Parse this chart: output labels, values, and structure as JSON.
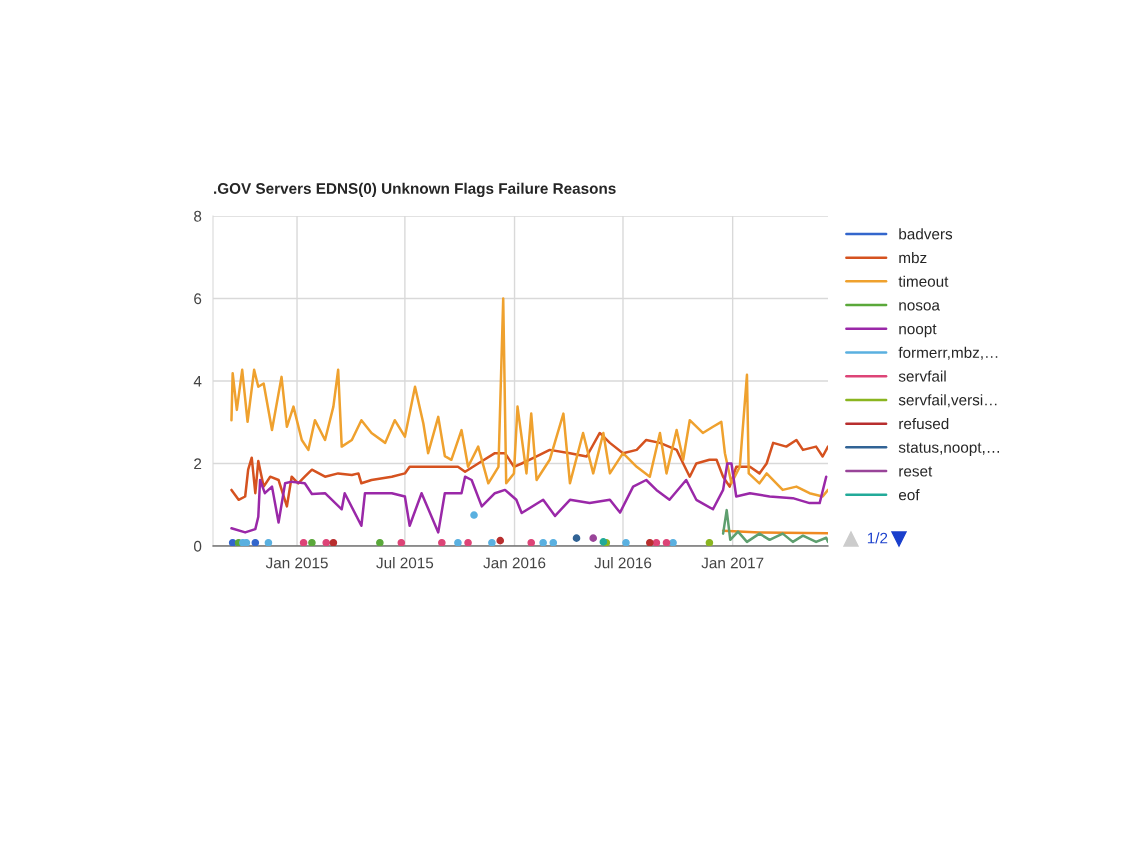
{
  "chart_data": {
    "type": "line",
    "title": ".GOV Servers EDNS(0) Unknown Flags Failure Reasons",
    "xlim": [
      "2014-08-13",
      "2017-06-10"
    ],
    "xticks": [
      {
        "value": "2015-01-01",
        "label": "Jan 2015"
      },
      {
        "value": "2015-07-01",
        "label": "Jul 2015"
      },
      {
        "value": "2016-01-01",
        "label": "Jan 2016"
      },
      {
        "value": "2016-07-01",
        "label": "Jul 2016"
      },
      {
        "value": "2017-01-01",
        "label": "Jan 2017"
      }
    ],
    "ylim": [
      0,
      8
    ],
    "yticks": [
      0,
      2,
      4,
      6,
      8
    ],
    "grid": true,
    "legend": "right",
    "annotations": [
      "1/2"
    ],
    "series": [
      {
        "name": "badvers",
        "type": "scatter",
        "color": "#3366cc",
        "x": [
          "2014-09-15",
          "2014-10-06",
          "2014-10-23"
        ],
        "values": [
          0.08,
          null,
          0.08
        ]
      },
      {
        "name": "mbz",
        "color": "#d5521f",
        "x": [
          "2014-09-13",
          "2014-09-25",
          "2014-10-06",
          "2014-10-11",
          "2014-10-17",
          "2014-10-23",
          "2014-10-28",
          "2014-11-06",
          "2014-11-17",
          "2014-12-01",
          "2014-12-15",
          "2014-12-23",
          "2015-01-03",
          "2015-01-14",
          "2015-01-26",
          "2015-02-17",
          "2015-03-11",
          "2015-04-03",
          "2015-04-14",
          "2015-04-19",
          "2015-05-06",
          "2015-06-09",
          "2015-07-01",
          "2015-07-09",
          "2015-08-26",
          "2015-09-28",
          "2015-10-10",
          "2015-11-01",
          "2015-11-29",
          "2015-12-16",
          "2015-12-31",
          "2016-01-13",
          "2016-02-07",
          "2016-02-29",
          "2016-04-03",
          "2016-05-01",
          "2016-05-23",
          "2016-06-09",
          "2016-07-01",
          "2016-07-24",
          "2016-08-09",
          "2016-09-01",
          "2016-09-29",
          "2016-10-10",
          "2016-10-21",
          "2016-11-01",
          "2016-11-23",
          "2016-12-05",
          "2016-12-16",
          "2016-12-27",
          "2017-01-07",
          "2017-01-30",
          "2017-02-15",
          "2017-02-27",
          "2017-03-10",
          "2017-04-01",
          "2017-04-18",
          "2017-04-29",
          "2017-05-21",
          "2017-06-01",
          "2017-06-10"
        ],
        "values": [
          1.36,
          1.12,
          1.2,
          1.85,
          2.14,
          1.28,
          2.06,
          1.44,
          1.68,
          1.6,
          0.96,
          1.68,
          1.52,
          1.68,
          1.85,
          1.68,
          1.76,
          1.72,
          1.76,
          1.52,
          1.6,
          1.68,
          1.76,
          1.92,
          1.92,
          1.92,
          1.8,
          2.0,
          2.25,
          2.25,
          1.92,
          2.0,
          2.17,
          2.33,
          2.25,
          2.17,
          2.74,
          2.5,
          2.25,
          2.33,
          2.57,
          2.5,
          2.33,
          2.0,
          1.68,
          2.0,
          2.09,
          2.09,
          1.68,
          1.44,
          1.92,
          1.92,
          1.76,
          2.0,
          2.5,
          2.41,
          2.57,
          2.33,
          2.41,
          2.17,
          2.41
        ]
      },
      {
        "name": "timeout",
        "color": "#efa12e",
        "x": [
          "2014-09-13",
          "2014-09-15",
          "2014-09-22",
          "2014-10-01",
          "2014-10-10",
          "2014-10-21",
          "2014-10-28",
          "2014-11-06",
          "2014-11-20",
          "2014-12-06",
          "2014-12-15",
          "2014-12-26",
          "2015-01-09",
          "2015-01-20",
          "2015-01-31",
          "2015-02-17",
          "2015-03-03",
          "2015-03-11",
          "2015-03-17",
          "2015-04-03",
          "2015-04-19",
          "2015-05-06",
          "2015-05-29",
          "2015-06-14",
          "2015-07-01",
          "2015-07-18",
          "2015-08-01",
          "2015-08-09",
          "2015-08-26",
          "2015-09-06",
          "2015-09-17",
          "2015-10-04",
          "2015-10-15",
          "2015-11-01",
          "2015-11-18",
          "2015-12-05",
          "2015-12-13",
          "2015-12-18",
          "2015-12-31",
          "2016-01-06",
          "2016-01-21",
          "2016-01-29",
          "2016-02-07",
          "2016-02-29",
          "2016-03-23",
          "2016-04-03",
          "2016-04-25",
          "2016-05-12",
          "2016-05-29",
          "2016-06-09",
          "2016-07-01",
          "2016-07-24",
          "2016-08-15",
          "2016-09-01",
          "2016-09-12",
          "2016-09-29",
          "2016-10-10",
          "2016-10-21",
          "2016-11-12",
          "2016-11-29",
          "2016-12-13",
          "2016-12-19",
          "2016-12-30",
          "2017-01-13",
          "2017-01-25",
          "2017-01-28",
          "2017-02-15",
          "2017-02-27",
          "2017-03-26",
          "2017-04-18",
          "2017-05-10",
          "2017-06-01",
          "2017-06-10"
        ],
        "values": [
          3.05,
          4.19,
          3.3,
          4.27,
          3.01,
          4.27,
          3.86,
          3.94,
          2.81,
          4.1,
          2.89,
          3.38,
          2.57,
          2.33,
          3.05,
          2.57,
          3.38,
          4.27,
          2.41,
          2.57,
          3.05,
          2.74,
          2.5,
          3.05,
          2.65,
          3.86,
          2.97,
          2.25,
          3.13,
          2.18,
          2.09,
          2.81,
          1.92,
          2.41,
          1.52,
          1.92,
          6.0,
          1.52,
          1.76,
          3.38,
          1.76,
          3.21,
          1.6,
          2.09,
          3.21,
          1.52,
          2.74,
          1.76,
          2.74,
          1.76,
          2.25,
          1.92,
          1.68,
          2.74,
          1.76,
          2.81,
          2.09,
          3.05,
          2.74,
          2.89,
          3.01,
          2.25,
          1.52,
          1.92,
          4.15,
          1.76,
          1.52,
          1.76,
          1.36,
          1.44,
          1.28,
          1.2,
          1.36
        ]
      },
      {
        "name": "nosoa",
        "type": "scatter",
        "color": "#5aa83a",
        "x": [
          "2014-09-25",
          "2015-01-26",
          "2015-05-20"
        ],
        "values": [
          0.08,
          0.08,
          0.08
        ]
      },
      {
        "name": "noopt",
        "color": "#9a28a8",
        "x": [
          "2014-09-13",
          "2014-10-06",
          "2014-10-23",
          "2014-10-28",
          "2014-10-31",
          "2014-11-08",
          "2014-11-20",
          "2014-12-01",
          "2014-12-12",
          "2014-12-23",
          "2015-01-14",
          "2015-01-26",
          "2015-02-17",
          "2015-03-17",
          "2015-03-22",
          "2015-04-19",
          "2015-04-25",
          "2015-06-09",
          "2015-07-01",
          "2015-07-09",
          "2015-07-29",
          "2015-08-26",
          "2015-09-06",
          "2015-10-04",
          "2015-10-10",
          "2015-10-21",
          "2015-11-07",
          "2015-11-29",
          "2015-12-16",
          "2016-01-04",
          "2016-01-13",
          "2016-02-18",
          "2016-03-09",
          "2016-04-03",
          "2016-05-06",
          "2016-06-09",
          "2016-06-26",
          "2016-07-18",
          "2016-08-09",
          "2016-08-26",
          "2016-09-17",
          "2016-10-15",
          "2016-11-01",
          "2016-11-29",
          "2016-12-16",
          "2016-12-23",
          "2016-12-30",
          "2017-01-07",
          "2017-01-30",
          "2017-03-04",
          "2017-04-12",
          "2017-05-10",
          "2017-05-27",
          "2017-06-07"
        ],
        "values": [
          0.43,
          0.33,
          0.41,
          0.71,
          1.6,
          1.28,
          1.44,
          0.57,
          1.52,
          1.56,
          1.52,
          1.26,
          1.28,
          0.89,
          1.28,
          0.49,
          1.28,
          1.28,
          1.2,
          0.49,
          1.28,
          0.33,
          1.28,
          1.28,
          1.68,
          1.6,
          0.96,
          1.28,
          1.36,
          1.12,
          0.8,
          1.12,
          0.73,
          1.12,
          1.04,
          1.12,
          0.81,
          1.44,
          1.6,
          1.36,
          1.12,
          1.6,
          1.12,
          0.89,
          1.36,
          2.0,
          2.0,
          1.2,
          1.28,
          1.2,
          1.16,
          1.04,
          1.04,
          1.68
        ]
      },
      {
        "name": "formerr,mbz,…",
        "type": "scatter",
        "color": "#5ab0e0",
        "x": [
          "2014-10-02",
          "2014-10-08",
          "2014-11-14",
          "2015-09-28",
          "2015-10-25",
          "2015-11-24",
          "2016-02-18",
          "2016-03-06",
          "2016-07-06",
          "2016-09-23"
        ],
        "values": [
          0.08,
          0.08,
          0.08,
          0.08,
          0.75,
          0.08,
          0.08,
          0.08,
          0.08,
          0.08
        ]
      },
      {
        "name": "servfail",
        "type": "scatter",
        "color": "#dd4477",
        "x": [
          "2015-01-12",
          "2015-02-19",
          "2015-06-25",
          "2015-09-01",
          "2015-10-15",
          "2016-01-29",
          "2016-08-26",
          "2016-09-12"
        ],
        "values": [
          0.08,
          0.08,
          0.08,
          0.08,
          0.08,
          0.08,
          0.08,
          0.08
        ]
      },
      {
        "name": "servfail,versi…",
        "type": "scatter",
        "color": "#8ab520",
        "x": [
          "2016-06-03",
          "2016-11-23"
        ],
        "values": [
          0.08,
          0.08
        ]
      },
      {
        "name": "refused",
        "type": "scatter",
        "color": "#b82e2e",
        "x": [
          "2015-03-03",
          "2015-12-08",
          "2016-08-15"
        ],
        "values": [
          0.08,
          0.13,
          0.08
        ]
      },
      {
        "name": "status,noopt,…",
        "type": "scatter",
        "color": "#316395",
        "x": [
          "2016-04-14"
        ],
        "values": [
          0.19
        ]
      },
      {
        "name": "reset",
        "type": "scatter",
        "color": "#994499",
        "x": [
          "2016-05-12"
        ],
        "values": [
          0.19
        ]
      },
      {
        "name": "eof",
        "type": "scatter",
        "color": "#22aa99",
        "x": [
          "2016-05-29"
        ],
        "values": [
          0.1
        ]
      },
      {
        "color": "#ef8a22",
        "x": [
          "2016-12-16",
          "2017-02-15",
          "2017-06-10"
        ],
        "values": [
          0.37,
          0.33,
          0.31
        ]
      },
      {
        "color": "#5e9f6f",
        "x": [
          "2016-12-16",
          "2016-12-22",
          "2016-12-28",
          "2017-01-10",
          "2017-01-25",
          "2017-02-15",
          "2017-03-04",
          "2017-03-26",
          "2017-04-12",
          "2017-04-29",
          "2017-05-21",
          "2017-06-07",
          "2017-06-10"
        ],
        "values": [
          0.3,
          0.87,
          0.15,
          0.35,
          0.1,
          0.3,
          0.15,
          0.3,
          0.1,
          0.25,
          0.1,
          0.2,
          0.1
        ]
      }
    ]
  }
}
